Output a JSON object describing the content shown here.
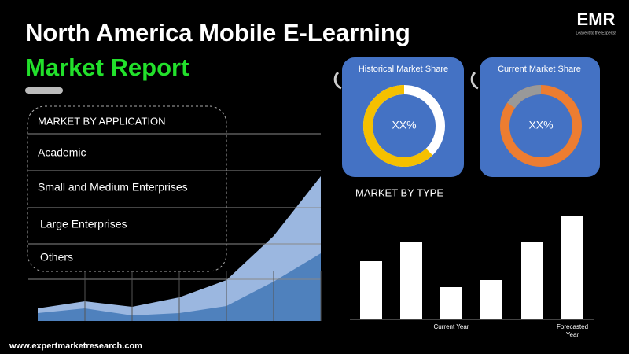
{
  "header": {
    "title": "North America Mobile E-Learning",
    "subtitle": "Market Report",
    "logo": "EMR",
    "logo_tagline": "Leave it to the Experts!"
  },
  "application": {
    "heading": "MARKET  BY APPLICATION",
    "items": [
      "Academic",
      "Small and Medium Enterprises",
      "Large Enterprises",
      "Others"
    ]
  },
  "share_cards": [
    {
      "title": "Historical Market Share",
      "value": "XX%"
    },
    {
      "title": "Current Market Share",
      "value": "XX%"
    }
  ],
  "area_chart": {
    "type": "area",
    "categories": [
      null,
      null,
      null,
      null,
      null,
      null,
      null
    ],
    "series": [
      {
        "color": "#9bb7e0",
        "values": [
          16,
          25,
          18,
          30,
          52,
          108,
          184
        ]
      },
      {
        "color": "#4f81bd",
        "values": [
          10,
          16,
          7,
          10,
          19,
          50,
          86
        ]
      }
    ],
    "ylim": [
      0,
      200
    ]
  },
  "type_chart": {
    "type": "bar",
    "title": "MARKET BY TYPE",
    "categories": [
      null,
      null,
      "Current Year",
      null,
      null,
      "Forecasted Year"
    ],
    "values": [
      74,
      98,
      41,
      50,
      98,
      131
    ],
    "color": "#ffffff",
    "ylim": [
      0,
      140
    ]
  },
  "footer": {
    "url": "www.expertmarketresearch.com"
  }
}
